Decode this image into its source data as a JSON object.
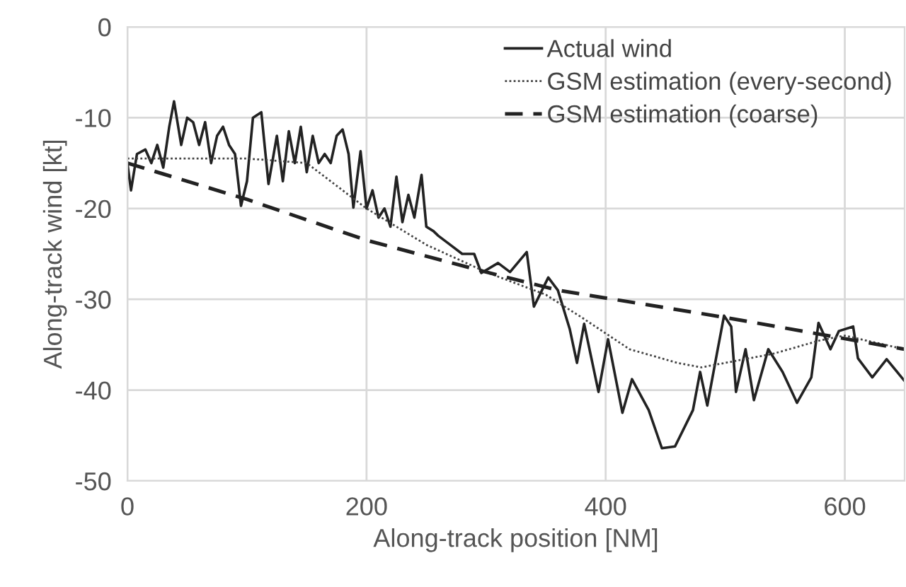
{
  "chart_data": {
    "type": "line",
    "xlabel": "Along-track position [NM]",
    "ylabel": "Along-track wind [kt]",
    "xlim": [
      0,
      650
    ],
    "xticks": [
      0,
      200,
      400,
      600
    ],
    "ylim": [
      -50,
      0
    ],
    "yticks": [
      -50,
      -40,
      -30,
      -20,
      -10,
      0
    ],
    "grid": true,
    "legend": "top right",
    "series": [
      {
        "name": "Actual wind",
        "color": "#222222",
        "line_style": "solid",
        "x": [
          0,
          3,
          8,
          15,
          20,
          25,
          30,
          35,
          39,
          45,
          50,
          55,
          60,
          65,
          70,
          75,
          80,
          85,
          90,
          95,
          100,
          105,
          112,
          118,
          125,
          130,
          135,
          140,
          145,
          150,
          155,
          160,
          165,
          170,
          175,
          180,
          185,
          189,
          195,
          200,
          205,
          210,
          215,
          220,
          225,
          230,
          235,
          240,
          246,
          250,
          256,
          260,
          270,
          280,
          290,
          296,
          310,
          320,
          334,
          340,
          352,
          360,
          370,
          376,
          382,
          394,
          402,
          414,
          422,
          436,
          447,
          458,
          473,
          479,
          485,
          493,
          499,
          505,
          509,
          517,
          524,
          536,
          548,
          560,
          572,
          578,
          588,
          595,
          607,
          611,
          623,
          635,
          650
        ],
        "values": [
          -15,
          -18,
          -14,
          -13.5,
          -15,
          -13,
          -15.5,
          -11,
          -8.2,
          -13,
          -10,
          -10.5,
          -13,
          -10.5,
          -15,
          -12,
          -11,
          -13,
          -14,
          -19.7,
          -17,
          -10,
          -9.4,
          -17.3,
          -12,
          -17,
          -11.5,
          -15,
          -11,
          -16,
          -12,
          -15,
          -14,
          -15,
          -12,
          -11.3,
          -14,
          -19.9,
          -13.7,
          -20,
          -18,
          -21,
          -20,
          -22,
          -16.5,
          -21.5,
          -18.5,
          -21,
          -16.3,
          -22,
          -22.5,
          -23,
          -24,
          -25,
          -25,
          -27.1,
          -26,
          -27,
          -24.8,
          -30.8,
          -27.6,
          -29,
          -33.3,
          -37,
          -32.7,
          -40.2,
          -34.4,
          -42.5,
          -38.8,
          -42.2,
          -46.4,
          -46.2,
          -42.2,
          -38,
          -41.7,
          -36,
          -31.8,
          -33,
          -40.2,
          -35.5,
          -41.1,
          -35.5,
          -38,
          -41.4,
          -38.6,
          -32.6,
          -35.5,
          -33.5,
          -33,
          -36.5,
          -38.6,
          -36.6,
          -39
        ]
      },
      {
        "name": "GSM estimation (every-second)",
        "color": "#444444",
        "line_style": "dotted",
        "x": [
          0,
          50,
          100,
          150,
          200,
          250,
          300,
          350,
          380,
          420,
          460,
          480,
          500,
          540,
          580,
          600,
          650
        ],
        "values": [
          -14.5,
          -14.5,
          -14.5,
          -15,
          -20,
          -24,
          -27,
          -29.5,
          -32,
          -35.5,
          -37,
          -37.5,
          -37,
          -36,
          -34.5,
          -34,
          -35.5
        ]
      },
      {
        "name": "GSM estimation (coarse)",
        "color": "#222222",
        "line_style": "dashed",
        "x": [
          0,
          100,
          200,
          300,
          360,
          500,
          650
        ],
        "values": [
          -15,
          -19,
          -23.5,
          -27,
          -29,
          -32,
          -35.5
        ]
      }
    ]
  }
}
